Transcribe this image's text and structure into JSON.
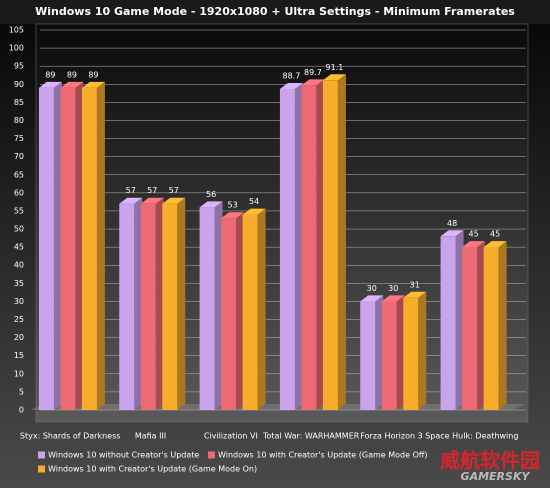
{
  "chart_data": {
    "type": "bar3d",
    "title": "Windows 10 Game Mode - 1920x1080 + Ultra Settings - Minimum Framerates",
    "categories": [
      "Styx: Shards of Darkness",
      "Mafia III",
      "Civilization VI",
      "Total War: WARHAMMER",
      "Forza Horizon 3",
      "Space Hulk: Deathwing"
    ],
    "series": [
      {
        "name": "Windows 10 without Creator's Update",
        "color": "#c9a3ec",
        "values": [
          89,
          57,
          56,
          88.7,
          30,
          48
        ]
      },
      {
        "name": "Windows 10 with Creator's Update (Game Mode Off)",
        "color": "#ec6a74",
        "values": [
          89,
          57,
          53,
          89.7,
          30,
          45
        ]
      },
      {
        "name": "Windows 10 with Creator's Update (Game Mode On)",
        "color": "#f7ac2c",
        "values": [
          89,
          57,
          54,
          91.1,
          31,
          45
        ]
      }
    ],
    "ylim": [
      0,
      105
    ],
    "yticks": [
      0,
      5,
      10,
      15,
      20,
      25,
      30,
      35,
      40,
      45,
      50,
      55,
      60,
      65,
      70,
      75,
      80,
      85,
      90,
      95,
      100,
      105
    ],
    "grid": true,
    "watermark": [
      "威航软件园",
      "GAMERSKY"
    ]
  }
}
